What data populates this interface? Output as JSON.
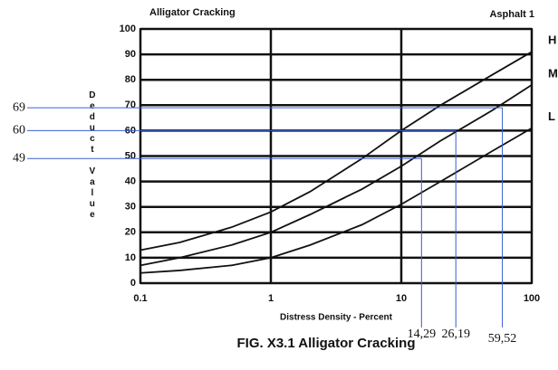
{
  "chart_data": {
    "type": "line",
    "title": "Alligator Cracking",
    "subtitle": "Asphalt 1",
    "caption": "FIG. X3.1 Alligator Cracking",
    "x_label": "Distress Density - Percent",
    "y_label": "Deduct Value",
    "log_x": true,
    "grid": true,
    "x": [
      0.1,
      0.2,
      0.5,
      1,
      2,
      5,
      10,
      20,
      50,
      100
    ],
    "series": [
      {
        "name": "H",
        "color": "#111111",
        "values": [
          13,
          16,
          22,
          28,
          36,
          49,
          60,
          70,
          82,
          91
        ]
      },
      {
        "name": "M",
        "color": "#111111",
        "values": [
          7,
          10,
          15,
          20,
          27,
          37,
          46,
          56,
          68,
          78
        ]
      },
      {
        "name": "L",
        "color": "#111111",
        "values": [
          4,
          5,
          7,
          10,
          15,
          23,
          31,
          40,
          52,
          61
        ]
      }
    ],
    "xlim": [
      0.1,
      100
    ],
    "xticks": [
      0.1,
      1,
      10,
      100
    ],
    "ylim": [
      0,
      100
    ],
    "yticks": [
      0,
      10,
      20,
      30,
      40,
      50,
      60,
      70,
      80,
      90,
      100
    ],
    "annotation_color": "#3a5fcd",
    "annotations": [
      {
        "x": {
          "value": 14.29,
          "label": "14,29"
        },
        "y": 49
      },
      {
        "x": {
          "value": 26.19,
          "label": "26,19"
        },
        "y": 60
      },
      {
        "x": {
          "value": 59.52,
          "label": "59,52"
        },
        "y": 69
      }
    ]
  }
}
